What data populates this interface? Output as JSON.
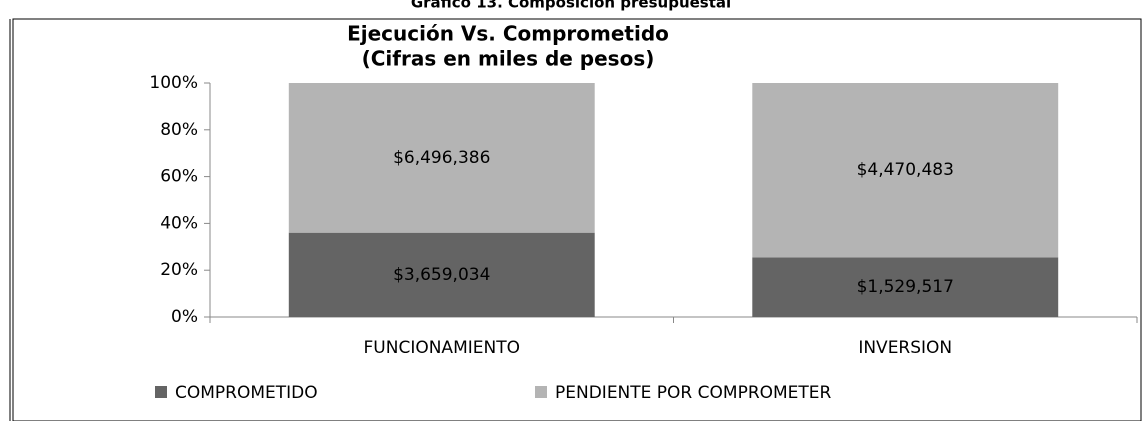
{
  "caption": "Gráfico 13. Composición presupuestal",
  "chart_data": {
    "type": "bar",
    "stacking": "percent",
    "title": "Ejecución Vs. Comprometido",
    "subtitle": "(Cifras en miles de pesos)",
    "categories": [
      "FUNCIONAMIENTO",
      "INVERSION"
    ],
    "series": [
      {
        "name": "COMPROMETIDO",
        "color": "#646464",
        "values": [
          3659034,
          1529517
        ],
        "value_labels": [
          "$3,659,034",
          "$1,529,517"
        ]
      },
      {
        "name": "PENDIENTE POR COMPROMETER",
        "color": "#b4b4b4",
        "values": [
          6496386,
          4470483
        ],
        "value_labels": [
          "$6,496,386",
          "$4,470,483"
        ]
      }
    ],
    "ylim": [
      0,
      100
    ],
    "yticks": [
      {
        "value": 0,
        "label": "0%"
      },
      {
        "value": 20,
        "label": "20%"
      },
      {
        "value": 40,
        "label": "40%"
      },
      {
        "value": 60,
        "label": "60%"
      },
      {
        "value": 80,
        "label": "80%"
      },
      {
        "value": 100,
        "label": "100%"
      }
    ],
    "legend": "bottom",
    "grid": false
  }
}
